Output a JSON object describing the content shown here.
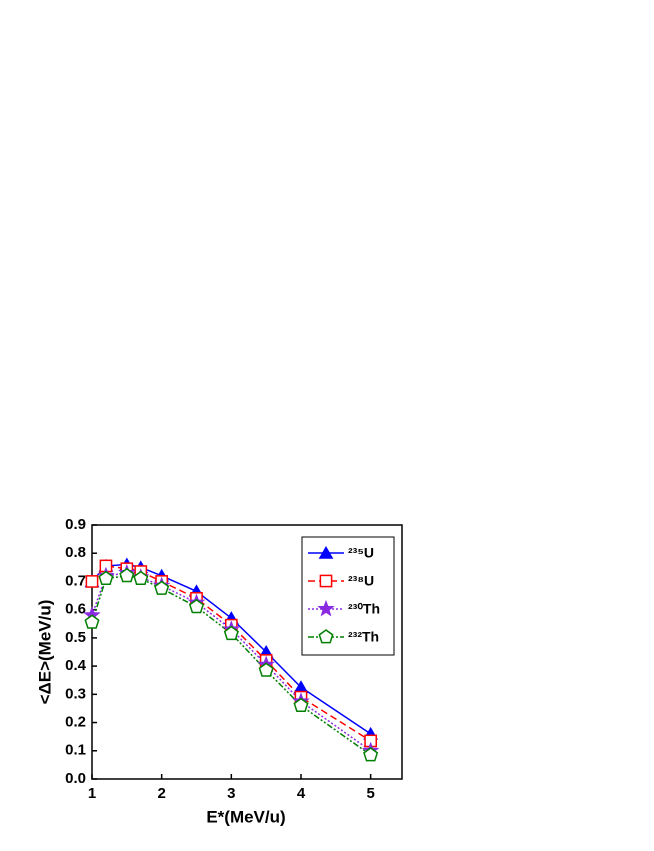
{
  "chart_data": {
    "type": "line",
    "xlabel": "E*(MeV/u)",
    "ylabel": "<ΔE>(MeV/u)",
    "x": [
      1,
      1.2,
      1.5,
      1.7,
      2,
      2.5,
      3,
      3.5,
      4,
      5
    ],
    "series": [
      {
        "name": "²³⁵U",
        "color": "#0000ff",
        "marker": "triangle",
        "filled": true,
        "dash": "solid",
        "values": [
          0.7,
          0.755,
          0.76,
          0.75,
          0.72,
          0.665,
          0.57,
          0.45,
          0.325,
          0.16
        ]
      },
      {
        "name": "²³⁸U",
        "color": "#ff0000",
        "marker": "square",
        "filled": false,
        "dash": "dash",
        "values": [
          0.7,
          0.755,
          0.745,
          0.735,
          0.7,
          0.64,
          0.545,
          0.42,
          0.29,
          0.135
        ]
      },
      {
        "name": "²³⁰Th",
        "color": "#8a2be2",
        "marker": "star",
        "filled": true,
        "dash": "dot",
        "values": [
          0.58,
          0.72,
          0.73,
          0.715,
          0.685,
          0.625,
          0.53,
          0.405,
          0.275,
          0.1
        ]
      },
      {
        "name": "²³²Th",
        "color": "#008000",
        "marker": "pentagon",
        "filled": false,
        "dash": "dashdotdot",
        "values": [
          0.555,
          0.71,
          0.72,
          0.71,
          0.675,
          0.61,
          0.515,
          0.385,
          0.26,
          0.085
        ]
      }
    ],
    "xlim": [
      1,
      5.45
    ],
    "ylim": [
      0,
      0.9
    ],
    "xticks": [
      1,
      2,
      3,
      4,
      5
    ],
    "yticks": [
      {
        "value": 0,
        "label": "0.0"
      },
      0.1,
      0.2,
      0.3,
      0.4,
      0.5,
      0.6,
      0.7,
      0.8,
      0.9
    ],
    "legend": "upper right"
  }
}
